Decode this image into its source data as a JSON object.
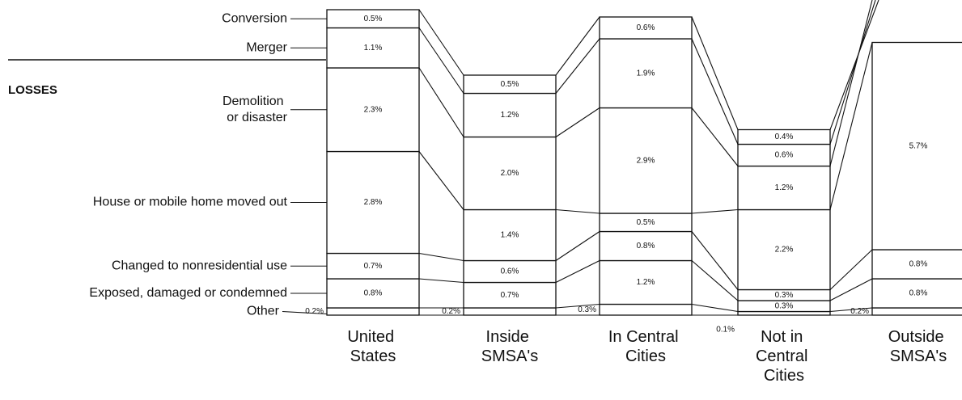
{
  "chart_data": {
    "type": "stacked-bar",
    "section_label": "LOSSES",
    "categories": [
      "United States",
      "Inside SMSA's",
      "In Central Cities",
      "Not in Central Cities",
      "Outside SMSA's"
    ],
    "color": "#ffffff",
    "series": [
      {
        "name": "Other",
        "values": [
          0.2,
          0.2,
          0.3,
          0.1,
          0.2
        ],
        "value_labels": [
          "0.2%",
          "0.2%",
          "0.3%",
          "0.1%",
          "0.2%"
        ]
      },
      {
        "name": "Exposed, damaged or condemned",
        "values": [
          0.8,
          0.7,
          1.2,
          0.3,
          0.8
        ],
        "value_labels": [
          "0.8%",
          "0.7%",
          "1.2%",
          "0.3%",
          "0.8%"
        ]
      },
      {
        "name": "Changed to nonresidential use",
        "values": [
          0.7,
          0.6,
          0.8,
          0.3,
          0.8
        ],
        "value_labels": [
          "0.7%",
          "0.6%",
          "0.8%",
          "0.3%",
          "0.8%"
        ]
      },
      {
        "name": "House or mobile home moved out",
        "values": [
          2.8,
          1.4,
          0.5,
          2.2,
          5.7
        ],
        "value_labels": [
          "2.8%",
          "1.4%",
          "0.5%",
          "2.2%",
          "5.7%"
        ]
      },
      {
        "name": "Demolition or disaster",
        "values": [
          2.3,
          2.0,
          2.9,
          1.2,
          null
        ],
        "value_labels": [
          "2.3%",
          "2.0%",
          "2.9%",
          "1.2%",
          null
        ]
      },
      {
        "name": "Merger",
        "values": [
          1.1,
          1.2,
          1.9,
          0.6,
          null
        ],
        "value_labels": [
          "1.1%",
          "1.2%",
          "1.9%",
          "0.6%",
          null
        ]
      },
      {
        "name": "Conversion",
        "values": [
          0.5,
          0.5,
          0.6,
          0.4,
          null
        ],
        "value_labels": [
          "0.5%",
          "0.5%",
          "0.6%",
          "0.4%",
          null
        ]
      }
    ]
  }
}
